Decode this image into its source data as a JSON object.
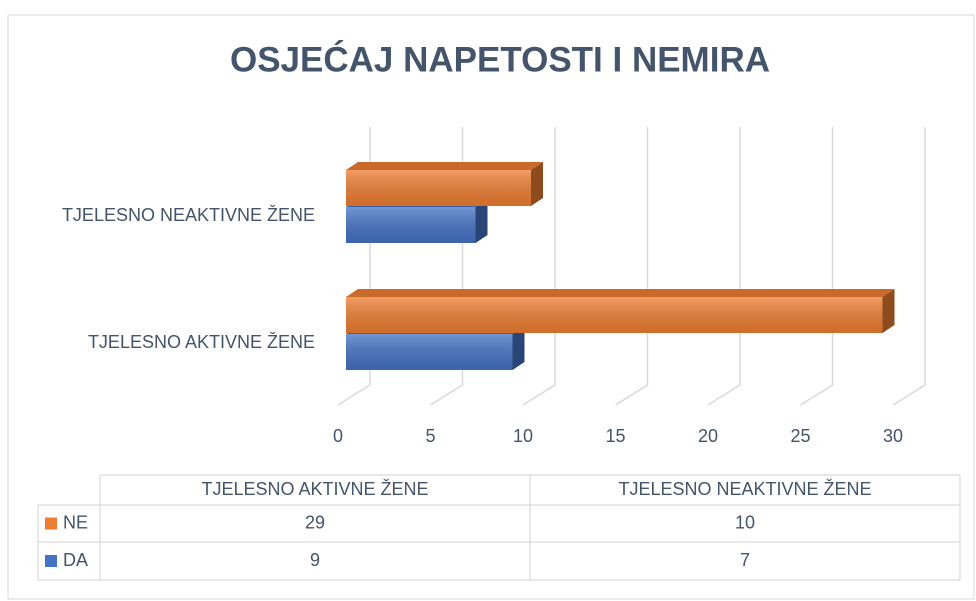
{
  "chart_data": {
    "type": "bar",
    "orientation": "horizontal",
    "title": "OSJEĆAJ NAPETOSTI I NEMIRA",
    "categories": [
      "TJELESNO AKTIVNE ŽENE",
      "TJELESNO NEAKTIVNE ŽENE"
    ],
    "series": [
      {
        "name": "DA",
        "color": "#4472c4",
        "values": [
          9,
          7
        ]
      },
      {
        "name": "NE",
        "color": "#ed7d31",
        "values": [
          29,
          10
        ]
      }
    ],
    "xlim": [
      0,
      30
    ],
    "xticks": [
      0,
      5,
      10,
      15,
      20,
      25,
      30
    ],
    "grid": true,
    "data_table": true
  }
}
